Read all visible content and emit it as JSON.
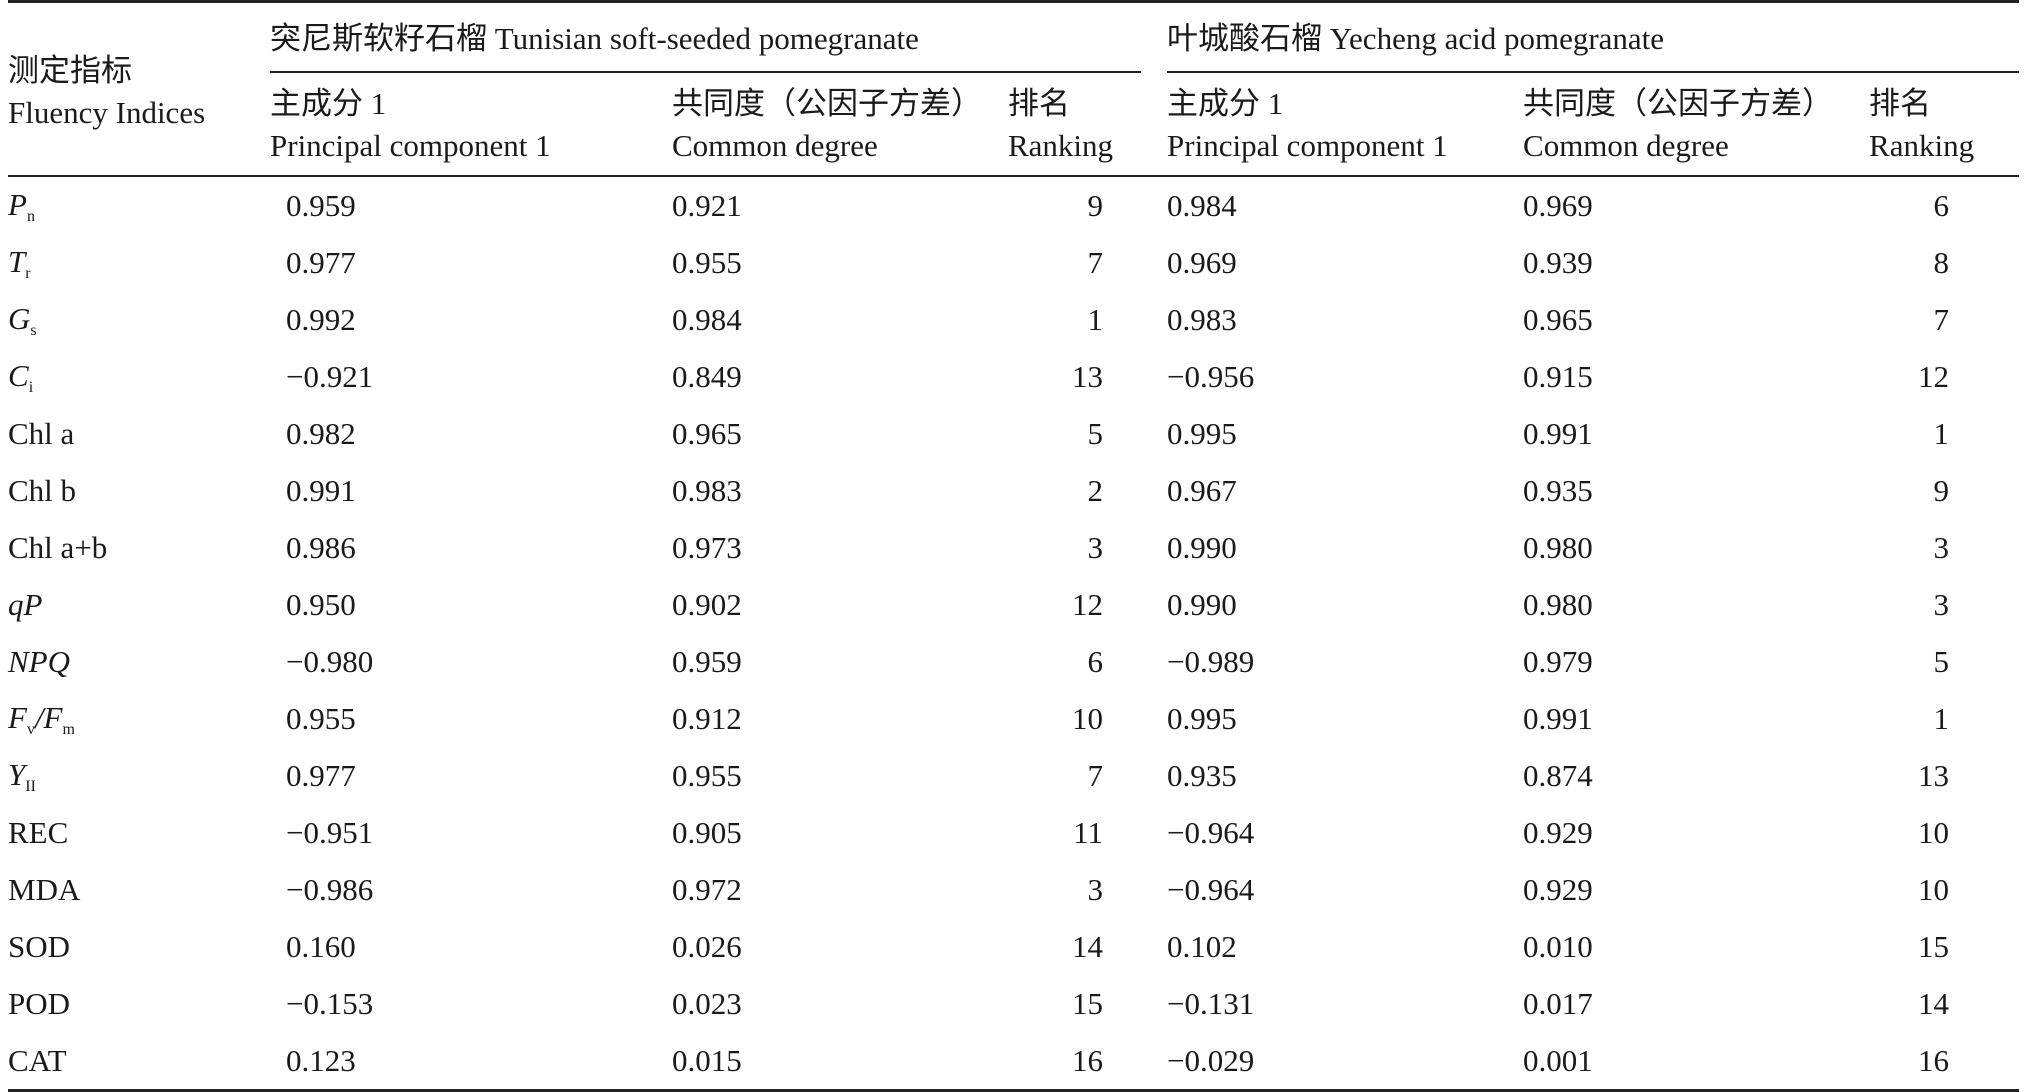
{
  "header": {
    "indices_zh": "测定指标",
    "indices_en": "Fluency Indices",
    "group1": "突尼斯软籽石榴 Tunisian soft-seeded pomegranate",
    "group2": "叶城酸石榴 Yecheng acid pomegranate",
    "pc_zh": "主成分 1",
    "pc_en": "Principal component 1",
    "com_zh": "共同度（公因子方差）",
    "com_en": "Common degree",
    "rank_zh": "排名",
    "rank_en": "Ranking"
  },
  "rows": [
    {
      "ind": "P",
      "sub": "n",
      "italic": true,
      "pc1": "0.959",
      "com1": "0.921",
      "rk1": "9",
      "pc2": "0.984",
      "com2": "0.969",
      "rk2": "6"
    },
    {
      "ind": "T",
      "sub": "r",
      "italic": true,
      "pc1": "0.977",
      "com1": "0.955",
      "rk1": "7",
      "pc2": "0.969",
      "com2": "0.939",
      "rk2": "8"
    },
    {
      "ind": "G",
      "sub": "s",
      "italic": true,
      "pc1": "0.992",
      "com1": "0.984",
      "rk1": "1",
      "pc2": "0.983",
      "com2": "0.965",
      "rk2": "7"
    },
    {
      "ind": "C",
      "sub": "i",
      "italic": true,
      "pc1": "−0.921",
      "com1": "0.849",
      "rk1": "13",
      "pc2": "−0.956",
      "com2": "0.915",
      "rk2": "12"
    },
    {
      "ind": "Chl a",
      "sub": "",
      "italic": false,
      "pc1": "0.982",
      "com1": "0.965",
      "rk1": "5",
      "pc2": "0.995",
      "com2": "0.991",
      "rk2": "1"
    },
    {
      "ind": "Chl b",
      "sub": "",
      "italic": false,
      "pc1": "0.991",
      "com1": "0.983",
      "rk1": "2",
      "pc2": "0.967",
      "com2": "0.935",
      "rk2": "9"
    },
    {
      "ind": "Chl a+b",
      "sub": "",
      "italic": false,
      "pc1": "0.986",
      "com1": "0.973",
      "rk1": "3",
      "pc2": "0.990",
      "com2": "0.980",
      "rk2": "3"
    },
    {
      "ind": "qP",
      "sub": "",
      "italic": true,
      "pc1": "0.950",
      "com1": "0.902",
      "rk1": "12",
      "pc2": "0.990",
      "com2": "0.980",
      "rk2": "3"
    },
    {
      "ind": "NPQ",
      "sub": "",
      "italic": true,
      "pc1": "−0.980",
      "com1": "0.959",
      "rk1": "6",
      "pc2": "−0.989",
      "com2": "0.979",
      "rk2": "5"
    },
    {
      "ind": "F",
      "sub": "v",
      "ind2": "/F",
      "sub2": "m",
      "italic": true,
      "pc1": "0.955",
      "com1": "0.912",
      "rk1": "10",
      "pc2": "0.995",
      "com2": "0.991",
      "rk2": "1"
    },
    {
      "ind": "Y",
      "sub": "II",
      "italic": true,
      "pc1": "0.977",
      "com1": "0.955",
      "rk1": "7",
      "pc2": "0.935",
      "com2": "0.874",
      "rk2": "13"
    },
    {
      "ind": "REC",
      "sub": "",
      "italic": false,
      "pc1": "−0.951",
      "com1": "0.905",
      "rk1": "11",
      "pc2": "−0.964",
      "com2": "0.929",
      "rk2": "10"
    },
    {
      "ind": "MDA",
      "sub": "",
      "italic": false,
      "pc1": "−0.986",
      "com1": "0.972",
      "rk1": "3",
      "pc2": "−0.964",
      "com2": "0.929",
      "rk2": "10"
    },
    {
      "ind": "SOD",
      "sub": "",
      "italic": false,
      "pc1": "0.160",
      "com1": "0.026",
      "rk1": "14",
      "pc2": "0.102",
      "com2": "0.010",
      "rk2": "15"
    },
    {
      "ind": "POD",
      "sub": "",
      "italic": false,
      "pc1": "−0.153",
      "com1": "0.023",
      "rk1": "15",
      "pc2": "−0.131",
      "com2": "0.017",
      "rk2": "14"
    },
    {
      "ind": "CAT",
      "sub": "",
      "italic": false,
      "pc1": "0.123",
      "com1": "0.015",
      "rk1": "16",
      "pc2": "−0.029",
      "com2": "0.001",
      "rk2": "16"
    }
  ]
}
